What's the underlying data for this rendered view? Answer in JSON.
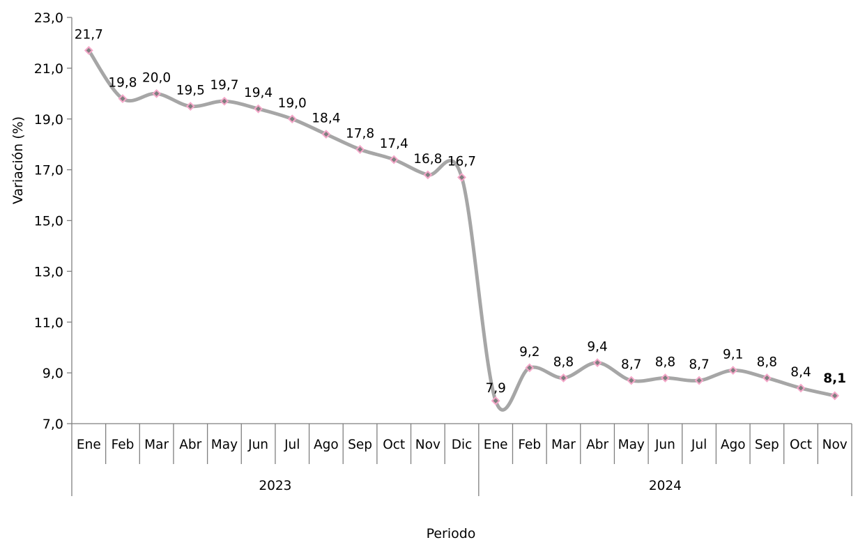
{
  "chart_data": {
    "type": "line",
    "ylabel": "Variación (%)",
    "xlabel": "Periodo",
    "ylim": [
      7.0,
      23.0
    ],
    "yticks": [
      "7,0",
      "9,0",
      "11,0",
      "13,0",
      "15,0",
      "17,0",
      "19,0",
      "21,0",
      "23,0"
    ],
    "groups": [
      {
        "label": "2023",
        "months": [
          "Ene",
          "Feb",
          "Mar",
          "Abr",
          "May",
          "Jun",
          "Jul",
          "Ago",
          "Sep",
          "Oct",
          "Nov",
          "Dic"
        ]
      },
      {
        "label": "2024",
        "months": [
          "Ene",
          "Feb",
          "Mar",
          "Abr",
          "May",
          "Jun",
          "Jul",
          "Ago",
          "Sep",
          "Oct",
          "Nov"
        ]
      }
    ],
    "values": [
      21.7,
      19.8,
      20.0,
      19.5,
      19.7,
      19.4,
      19.0,
      18.4,
      17.8,
      17.4,
      16.8,
      16.7,
      7.9,
      9.2,
      8.8,
      9.4,
      8.7,
      8.8,
      8.7,
      9.1,
      8.8,
      8.4,
      8.1
    ],
    "labels": [
      "21,7",
      "19,8",
      "20,0",
      "19,5",
      "19,7",
      "19,4",
      "19,0",
      "18,4",
      "17,8",
      "17,4",
      "16,8",
      "16,7",
      "7,9",
      "9,2",
      "8,8",
      "9,4",
      "8,7",
      "8,8",
      "8,7",
      "9,1",
      "8,8",
      "8,4",
      "8,1"
    ],
    "highlight_last_label": true,
    "colors": {
      "line": "#a6a6a6",
      "marker_fill": "#7f7f7f",
      "marker_stroke": "#f4a6c8",
      "axis": "#7f7f7f"
    },
    "grid": false
  }
}
